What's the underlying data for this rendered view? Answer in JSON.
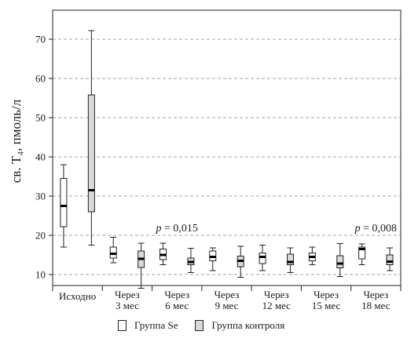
{
  "chart_data": {
    "type": "box",
    "ylabel": "св. Т₄, пмоль/л",
    "ylim": [
      0,
      75
    ],
    "yticks": [
      10,
      20,
      30,
      40,
      50,
      60,
      70
    ],
    "grid": "horizontal dashed",
    "categories": [
      [
        "Исходно"
      ],
      [
        "Через",
        "3 мес"
      ],
      [
        "Через",
        "6 мес"
      ],
      [
        "Через",
        "9 мес"
      ],
      [
        "Через",
        "12 мес"
      ],
      [
        "Через",
        "15 мес"
      ],
      [
        "Через",
        "18 мес"
      ]
    ],
    "series": [
      {
        "name": "Группа Se",
        "color": "#ffffff",
        "boxes": [
          {
            "min": 17,
            "q1": 22.2,
            "median": 27.5,
            "q3": 34.5,
            "max": 38
          },
          {
            "min": 13,
            "q1": 14.2,
            "median": 15.3,
            "q3": 17,
            "max": 19.5
          },
          {
            "min": 12.5,
            "q1": 13.8,
            "median": 15,
            "q3": 16.5,
            "max": 18
          },
          {
            "min": 11,
            "q1": 13.5,
            "median": 14.5,
            "q3": 16,
            "max": 16.8
          },
          {
            "min": 11,
            "q1": 12.8,
            "median": 14.5,
            "q3": 15.5,
            "max": 17.5
          },
          {
            "min": 12.5,
            "q1": 13.5,
            "median": 14.5,
            "q3": 15.5,
            "max": 17
          },
          {
            "min": 12.5,
            "q1": 14,
            "median": 16.5,
            "q3": 17,
            "max": 17.8
          }
        ]
      },
      {
        "name": "Группа контроля",
        "color": "#d9d9d9",
        "boxes": [
          {
            "min": 17.5,
            "q1": 26,
            "median": 31.5,
            "q3": 55.8,
            "max": 72.2
          },
          {
            "min": 6.5,
            "q1": 11.8,
            "median": 14,
            "q3": 16,
            "max": 18
          },
          {
            "min": 10.5,
            "q1": 12.5,
            "median": 13.2,
            "q3": 14.2,
            "max": 16.7
          },
          {
            "min": 9.3,
            "q1": 12,
            "median": 13.5,
            "q3": 14.7,
            "max": 17.2
          },
          {
            "min": 10.5,
            "q1": 12.5,
            "median": 13.2,
            "q3": 15.2,
            "max": 16.8
          },
          {
            "min": 9.5,
            "q1": 11.7,
            "median": 12.8,
            "q3": 14.8,
            "max": 17.9
          },
          {
            "min": 11,
            "q1": 12.5,
            "median": 13.3,
            "q3": 15,
            "max": 16.8
          }
        ]
      }
    ],
    "annotations": [
      {
        "text": "p = 0,015",
        "category_index": 2,
        "y": 21
      },
      {
        "text": "p = 0,008",
        "category_index": 6,
        "y": 21
      }
    ],
    "legend": {
      "placement": "bottom-center",
      "items": [
        "Группа Se",
        "Группа контроля"
      ]
    }
  }
}
